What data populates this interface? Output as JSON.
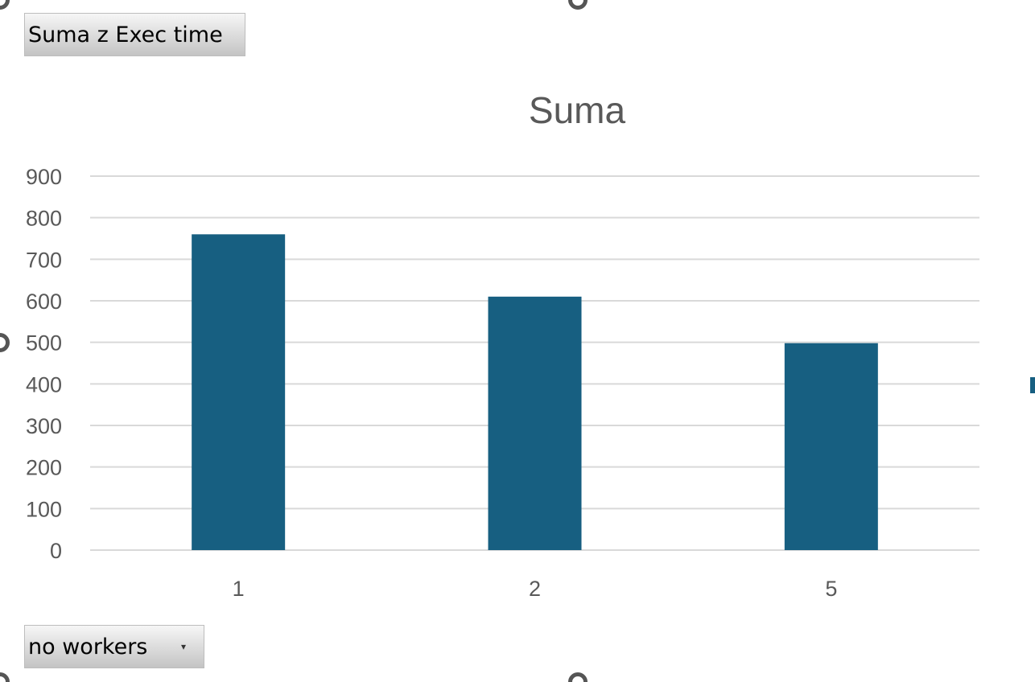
{
  "buttons": {
    "value_field": "Suma z Exec time",
    "axis_field": "no workers",
    "dropdown_glyph": "▾"
  },
  "colors": {
    "bar": "#175F81",
    "grid": "#D9D9D9",
    "text": "#595959"
  },
  "chart_data": {
    "type": "bar",
    "title": "Suma",
    "categories": [
      "1",
      "2",
      "5"
    ],
    "series": [
      {
        "values": [
          760,
          610,
          498
        ]
      }
    ],
    "ylim": [
      0,
      900
    ],
    "yticks": [
      0,
      100,
      200,
      300,
      400,
      500,
      600,
      700,
      800,
      900
    ],
    "xlabel": "",
    "ylabel": "",
    "grid": true,
    "legend": "right"
  }
}
